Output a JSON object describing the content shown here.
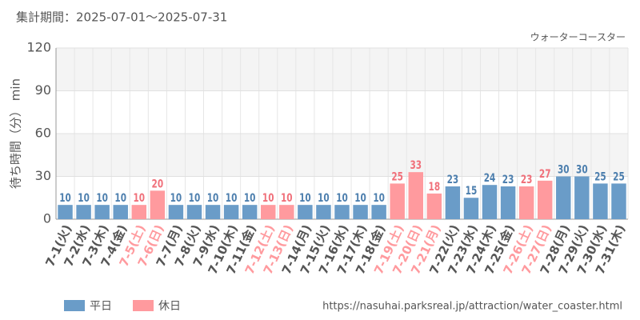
{
  "chart_data": {
    "type": "bar",
    "title": "集計期間：2025-07-01～2025-07-31",
    "subtitle": "ウォーターコースター",
    "y_label": "待ち時間（分） min",
    "source": "https://nasuhai.parksreal.jp/attraction/water_coaster.html",
    "categories": [
      "7-1(火)",
      "7-2(水)",
      "7-3(木)",
      "7-4(金)",
      "7-5(土)",
      "7-6(日)",
      "7-7(月)",
      "7-8(火)",
      "7-9(水)",
      "7-10(木)",
      "7-11(金)",
      "7-12(土)",
      "7-13(日)",
      "7-14(月)",
      "7-15(火)",
      "7-16(水)",
      "7-17(木)",
      "7-18(金)",
      "7-19(土)",
      "7-20(日)",
      "7-21(月)",
      "7-22(火)",
      "7-23(水)",
      "7-24(木)",
      "7-25(金)",
      "7-26(土)",
      "7-27(日)",
      "7-28(月)",
      "7-29(火)",
      "7-30(水)",
      "7-31(木)"
    ],
    "series": [
      {
        "name": "平日",
        "color": "#6a9cc8",
        "values": [
          10,
          10,
          10,
          10,
          null,
          null,
          10,
          10,
          10,
          10,
          10,
          null,
          null,
          10,
          10,
          10,
          10,
          10,
          null,
          null,
          null,
          23,
          15,
          24,
          23,
          null,
          null,
          30,
          30,
          25,
          25
        ]
      },
      {
        "name": "休日",
        "color": "#ff9a9e",
        "values": [
          null,
          null,
          null,
          null,
          10,
          20,
          null,
          null,
          null,
          null,
          null,
          10,
          10,
          null,
          null,
          null,
          null,
          null,
          25,
          33,
          18,
          null,
          null,
          null,
          null,
          23,
          27,
          null,
          null,
          null,
          null
        ]
      }
    ],
    "ylim": [
      0,
      120
    ],
    "yticks": [
      0,
      30,
      60,
      90,
      120
    ],
    "grid": true
  }
}
